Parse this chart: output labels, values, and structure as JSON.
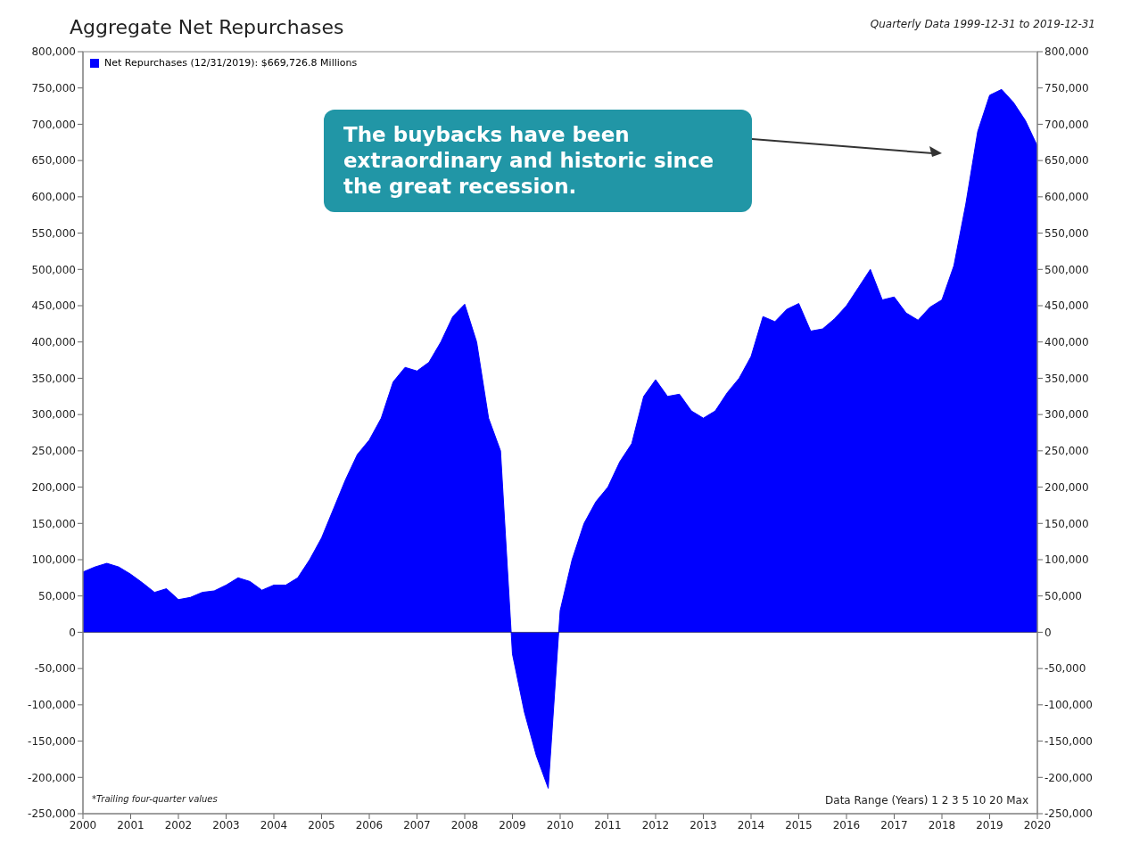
{
  "chart_data": {
    "type": "area",
    "title": "Aggregate Net Repurchases",
    "subtitle": "Quarterly Data 1999-12-31 to 2019-12-31",
    "annotations": [
      "The buybacks have been extraordinary and historic since the great recession.",
      "*Trailing four-quarter values",
      "Data Range (Years) 1 2 3 5 10 20 Max"
    ],
    "x": [
      2000,
      2000.25,
      2000.5,
      2000.75,
      2001,
      2001.25,
      2001.5,
      2001.75,
      2002,
      2002.25,
      2002.5,
      2002.75,
      2003,
      2003.25,
      2003.5,
      2003.75,
      2004,
      2004.25,
      2004.5,
      2004.75,
      2005,
      2005.25,
      2005.5,
      2005.75,
      2006,
      2006.25,
      2006.5,
      2006.75,
      2007,
      2007.25,
      2007.5,
      2007.75,
      2008,
      2008.25,
      2008.5,
      2008.75,
      2009,
      2009.25,
      2009.5,
      2009.75,
      2010,
      2010.25,
      2010.5,
      2010.75,
      2011,
      2011.25,
      2011.5,
      2011.75,
      2012,
      2012.25,
      2012.5,
      2012.75,
      2013,
      2013.25,
      2013.5,
      2013.75,
      2014,
      2014.25,
      2014.5,
      2014.75,
      2015,
      2015.25,
      2015.5,
      2015.75,
      2016,
      2016.25,
      2016.5,
      2016.75,
      2017,
      2017.25,
      2017.5,
      2017.75,
      2018,
      2018.25,
      2018.5,
      2018.75,
      2019,
      2019.25,
      2019.5,
      2019.75,
      2020
    ],
    "series": [
      {
        "name": "Net Repurchases (12/31/2019): $669,726.8 Millions",
        "color": "#0000ff",
        "values": [
          83000,
          90000,
          95000,
          90000,
          80000,
          68000,
          55000,
          60000,
          45000,
          48000,
          55000,
          57000,
          65000,
          75000,
          70000,
          58000,
          65000,
          65000,
          75000,
          100000,
          130000,
          170000,
          210000,
          245000,
          265000,
          295000,
          345000,
          365000,
          360000,
          372000,
          400000,
          435000,
          452000,
          400000,
          295000,
          250000,
          -30000,
          -110000,
          -170000,
          -215000,
          30000,
          100000,
          150000,
          180000,
          200000,
          235000,
          260000,
          325000,
          348000,
          325000,
          328000,
          305000,
          295000,
          305000,
          330000,
          350000,
          380000,
          435000,
          428000,
          445000,
          453000,
          415000,
          418000,
          432000,
          450000,
          475000,
          500000,
          458000,
          462000,
          440000,
          430000,
          448000,
          458000,
          505000,
          590000,
          690000,
          740000,
          748000,
          730000,
          705000,
          670000
        ]
      }
    ],
    "xlim": [
      2000,
      2020
    ],
    "xticks": [
      2000,
      2001,
      2002,
      2003,
      2004,
      2005,
      2006,
      2007,
      2008,
      2009,
      2010,
      2011,
      2012,
      2013,
      2014,
      2015,
      2016,
      2017,
      2018,
      2019,
      2020
    ],
    "ylim": [
      -250000,
      800000
    ],
    "yticks": [
      {
        "value": -250000,
        "label": "-250,000"
      },
      {
        "value": -200000,
        "label": "-200,000"
      },
      {
        "value": -150000,
        "label": "-150,000"
      },
      {
        "value": -100000,
        "label": "-100,000"
      },
      {
        "value": -50000,
        "label": "-50,000"
      },
      0,
      {
        "value": 50000,
        "label": "50,000"
      },
      {
        "value": 100000,
        "label": "100,000"
      },
      {
        "value": 150000,
        "label": "150,000"
      },
      {
        "value": 200000,
        "label": "200,000"
      },
      {
        "value": 250000,
        "label": "250,000"
      },
      {
        "value": 300000,
        "label": "300,000"
      },
      {
        "value": 350000,
        "label": "350,000"
      },
      {
        "value": 400000,
        "label": "400,000"
      },
      {
        "value": 450000,
        "label": "450,000"
      },
      {
        "value": 500000,
        "label": "500,000"
      },
      {
        "value": 550000,
        "label": "550,000"
      },
      {
        "value": 600000,
        "label": "600,000"
      },
      {
        "value": 650000,
        "label": "650,000"
      },
      {
        "value": 700000,
        "label": "700,000"
      },
      {
        "value": 750000,
        "label": "750,000"
      },
      {
        "value": 800000,
        "label": "800,000"
      }
    ],
    "y2lim": [
      -250000,
      800000
    ],
    "y2ticks": [
      {
        "value": -250000,
        "label": "-250,000"
      },
      {
        "value": -200000,
        "label": "-200,000"
      },
      {
        "value": -150000,
        "label": "-150,000"
      },
      {
        "value": -100000,
        "label": "-100,000"
      },
      {
        "value": -50000,
        "label": "-50,000"
      },
      0,
      {
        "value": 50000,
        "label": "50,000"
      },
      {
        "value": 100000,
        "label": "100,000"
      },
      {
        "value": 150000,
        "label": "150,000"
      },
      {
        "value": 200000,
        "label": "200,000"
      },
      {
        "value": 250000,
        "label": "250,000"
      },
      {
        "value": 300000,
        "label": "300,000"
      },
      {
        "value": 350000,
        "label": "350,000"
      },
      {
        "value": 400000,
        "label": "400,000"
      },
      {
        "value": 450000,
        "label": "450,000"
      },
      {
        "value": 500000,
        "label": "500,000"
      },
      {
        "value": 550000,
        "label": "550,000"
      },
      {
        "value": 600000,
        "label": "600,000"
      },
      {
        "value": 650000,
        "label": "650,000"
      },
      {
        "value": 700000,
        "label": "700,000"
      },
      {
        "value": 750000,
        "label": "750,000"
      },
      {
        "value": 800000,
        "label": "800,000"
      }
    ],
    "legend": "top left"
  }
}
